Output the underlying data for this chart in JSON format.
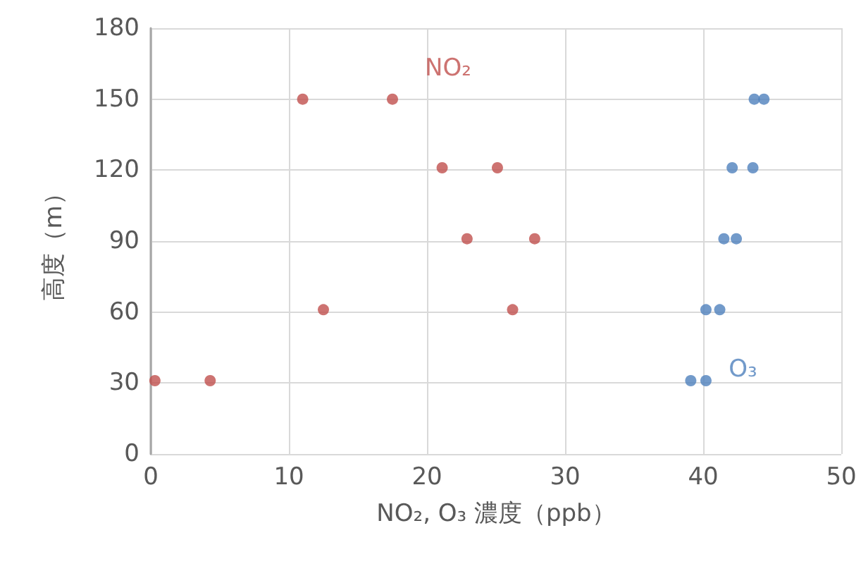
{
  "chart_data": {
    "type": "scatter",
    "xlabel": "NO₂, O₃ 濃度（ppb）",
    "ylabel": "高度（m）",
    "xlim": [
      0,
      50
    ],
    "xticks": [
      0,
      10,
      20,
      30,
      40,
      50
    ],
    "ylim": [
      0,
      180
    ],
    "yticks": [
      0,
      30,
      60,
      90,
      120,
      150,
      180
    ],
    "grid": true,
    "legend": false,
    "marker": "circle",
    "series": [
      {
        "name": "NO₂",
        "color": "#c0504d",
        "x": [
          0.3,
          4.3,
          11,
          17.5,
          21.1,
          25.1,
          22.9,
          27.8,
          12.5,
          26.2
        ],
        "values": [
          31,
          31,
          150,
          150,
          121,
          121,
          91,
          91,
          61,
          61
        ]
      },
      {
        "name": "O₃",
        "color": "#4f81bd",
        "x": [
          39.1,
          40.2,
          40.2,
          41.2,
          41.5,
          42.4,
          42.1,
          43.6,
          43.7,
          44.4
        ],
        "values": [
          31,
          31,
          61,
          61,
          91,
          91,
          121,
          121,
          150,
          150
        ]
      }
    ]
  }
}
